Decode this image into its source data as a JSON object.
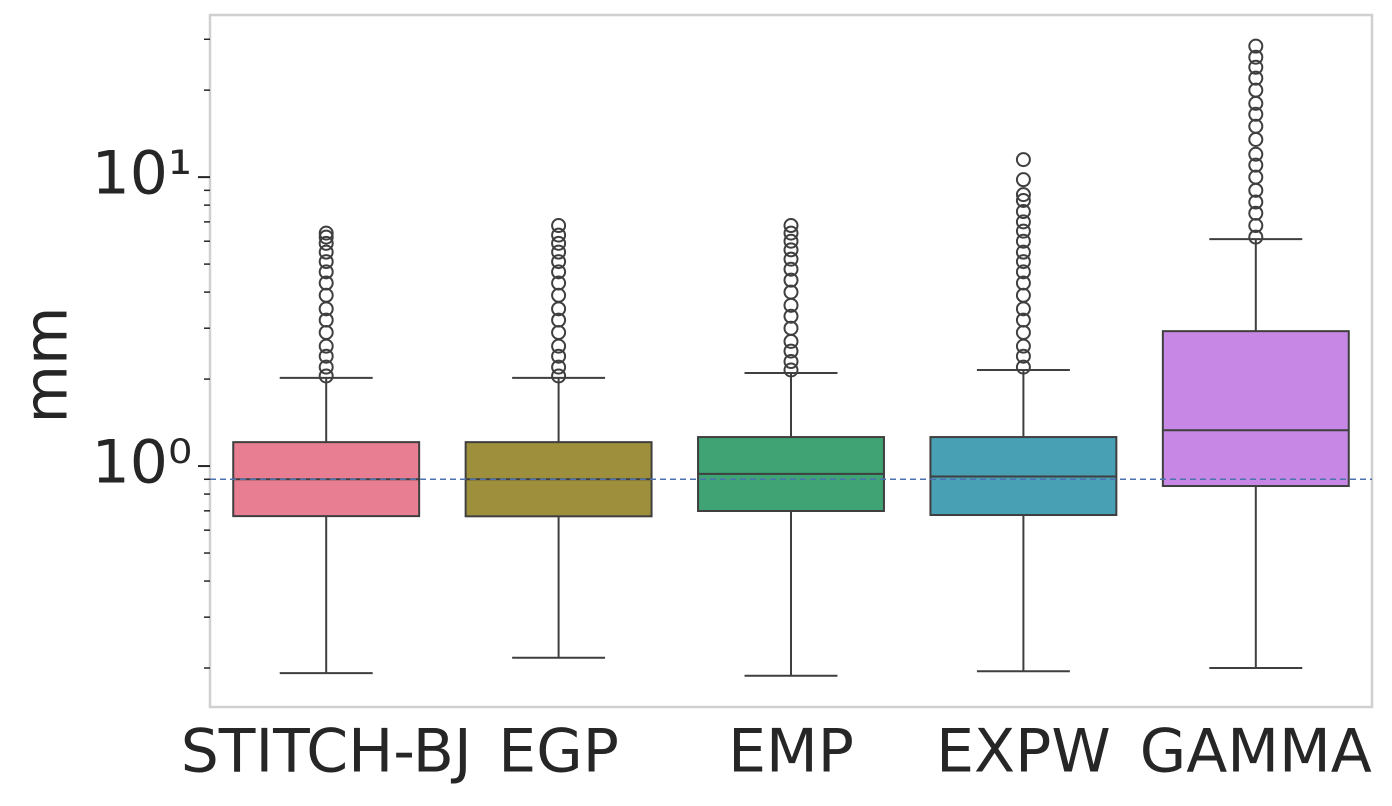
{
  "chart_data": {
    "type": "box",
    "y_label": "mm",
    "log_scale": true,
    "ylim": [
      0.1466,
      36.4
    ],
    "yticks": [
      {
        "value": 1,
        "label": "10⁰"
      },
      {
        "value": 10,
        "label": "10¹"
      }
    ],
    "yminorticks": [
      0.2,
      0.3,
      0.4,
      0.5,
      0.6,
      0.7,
      0.8,
      0.9,
      2,
      3,
      4,
      5,
      6,
      7,
      8,
      9,
      20,
      30
    ],
    "reference_line": 0.9,
    "categories": [
      "STITCH-BJ",
      "EGP",
      "EMP",
      "EXPW",
      "GAMMA"
    ],
    "colors": [
      "#e87e91",
      "#9e8f3c",
      "#3fa373",
      "#48a0b5",
      "#c788e5"
    ],
    "whisker_low": [
      0.192,
      0.217,
      0.188,
      0.195,
      0.2
    ],
    "q1": [
      0.671,
      0.67,
      0.699,
      0.677,
      0.853
    ],
    "median": [
      0.9,
      0.9,
      0.94,
      0.92,
      1.33
    ],
    "q3": [
      1.21,
      1.21,
      1.26,
      1.26,
      2.93
    ],
    "whisker_high": [
      2.02,
      2.02,
      2.1,
      2.15,
      6.1
    ],
    "outliers": [
      [
        2.05,
        2.2,
        2.4,
        2.6,
        2.9,
        3.2,
        3.5,
        3.9,
        4.3,
        4.7,
        5.1,
        5.5,
        5.9,
        6.2,
        6.4
      ],
      [
        2.05,
        2.2,
        2.4,
        2.6,
        2.9,
        3.2,
        3.5,
        3.9,
        4.3,
        4.7,
        5.1,
        5.5,
        5.9,
        6.3,
        6.8
      ],
      [
        2.15,
        2.3,
        2.5,
        2.7,
        3.0,
        3.3,
        3.6,
        4.0,
        4.4,
        4.8,
        5.2,
        5.6,
        6.0,
        6.4,
        6.8
      ],
      [
        2.2,
        2.4,
        2.6,
        2.9,
        3.2,
        3.5,
        3.9,
        4.3,
        4.7,
        5.1,
        5.5,
        6.0,
        6.5,
        7.0,
        7.6,
        8.3,
        8.7,
        9.8,
        11.5
      ],
      [
        6.2,
        6.8,
        7.5,
        8.2,
        9.0,
        10,
        11,
        12,
        13.5,
        15,
        16.5,
        18,
        20,
        22,
        24,
        26,
        28.4
      ]
    ]
  }
}
